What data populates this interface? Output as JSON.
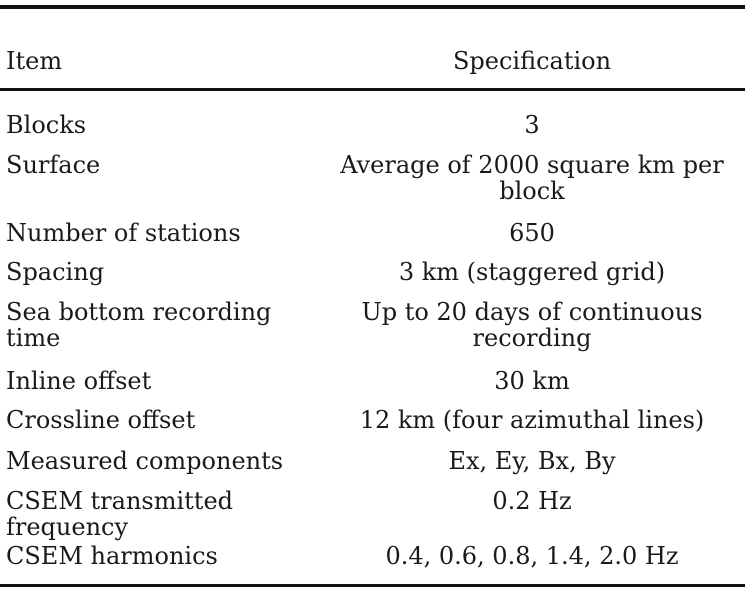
{
  "table": {
    "header": {
      "item": "Item",
      "specification": "Specification"
    },
    "rows": [
      {
        "item": "Blocks",
        "specification": "3"
      },
      {
        "item": "Surface",
        "specification": "Average of 2000 square km per block"
      },
      {
        "item": "Number of stations",
        "specification": "650"
      },
      {
        "item": "Spacing",
        "specification": "3 km (staggered grid)"
      },
      {
        "item": "Sea bottom recording time",
        "specification": "Up to 20 days of continuous recording"
      },
      {
        "item": "Inline offset",
        "specification": "30 km"
      },
      {
        "item": "Crossline offset",
        "specification": "12 km (four azimuthal lines)"
      },
      {
        "item": "Measured components",
        "specification": "Ex, Ey, Bx, By"
      },
      {
        "item": "CSEM transmitted frequency",
        "specification": "0.2 Hz"
      },
      {
        "item": "CSEM harmonics",
        "specification": "0.4, 0.6, 0.8, 1.4, 2.0 Hz"
      }
    ]
  }
}
